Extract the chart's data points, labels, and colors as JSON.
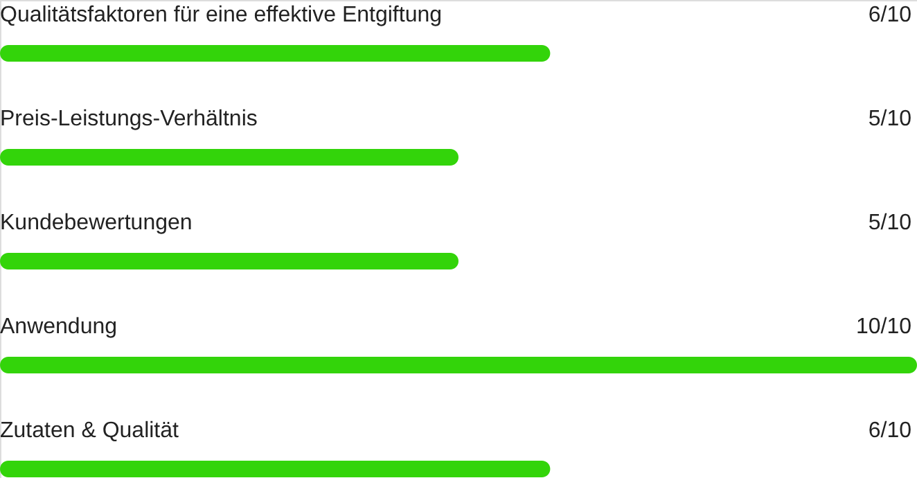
{
  "chart_data": {
    "type": "bar",
    "orientation": "horizontal",
    "categories": [
      "Qualitätsfaktoren für eine effektive Entgiftung",
      "Preis-Leistungs-Verhältnis",
      "Kundebewertungen",
      "Anwendung",
      "Zutaten & Qualität"
    ],
    "values": [
      0.6,
      0.5,
      0.5,
      1,
      0.6
    ],
    "value_labels": [
      "6/10",
      "5/10",
      "5/10",
      "10/10",
      "6/10"
    ],
    "color": "#33d40a",
    "xlim": [
      0,
      1
    ],
    "tick_labels": false
  }
}
